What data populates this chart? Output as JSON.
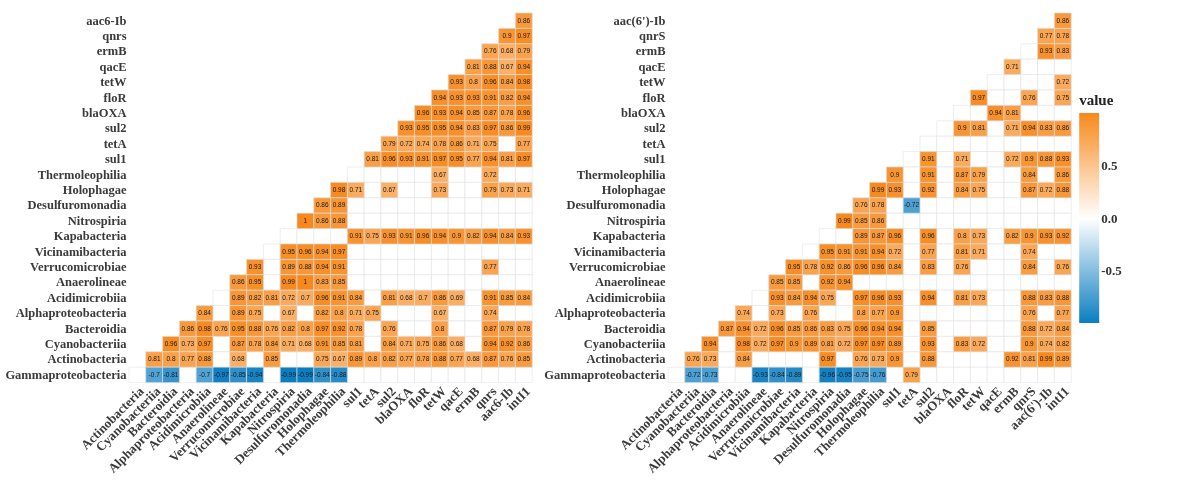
{
  "chart_data": [
    {
      "type": "heatmap",
      "data_labels": true,
      "categories": [
        "Actinobacteria",
        "Cyanobacteriia",
        "Bacteroidia",
        "Alphaproteobacteria",
        "Acidimicrobiia",
        "Anaerolineae",
        "Verrucomicrobiae",
        "Vicinamibacteria",
        "Kapabacteria",
        "Nitrospiria",
        "Desulfuromonadia",
        "Holophagae",
        "Thermoleophilia",
        "sul1",
        "tetA",
        "sul2",
        "blaOXA",
        "floR",
        "tetW",
        "qacE",
        "ermB",
        "qnrs",
        "aac6-Ib",
        "intI1"
      ],
      "y_categories": [
        "aac6-Ib",
        "qnrs",
        "ermB",
        "qacE",
        "tetW",
        "floR",
        "blaOXA",
        "sul2",
        "tetA",
        "sul1",
        "Thermoleophilia",
        "Holophagae",
        "Desulfuromonadia",
        "Nitrospiria",
        "Kapabacteria",
        "Vicinamibacteria",
        "Verrucomicrobiae",
        "Anaerolineae",
        "Acidimicrobiia",
        "Alphaproteobacteria",
        "Bacteroidia",
        "Cyanobacteriia",
        "Actinobacteria",
        "Gammaproteobacteria"
      ],
      "cells": [
        [
          null,
          null,
          null,
          null,
          null,
          null,
          null,
          null,
          null,
          null,
          null,
          null,
          null,
          null,
          null,
          null,
          null,
          null,
          null,
          null,
          null,
          null,
          null,
          0.86
        ],
        [
          null,
          null,
          null,
          null,
          null,
          null,
          null,
          null,
          null,
          null,
          null,
          null,
          null,
          null,
          null,
          null,
          null,
          null,
          null,
          null,
          null,
          null,
          0.9,
          0.97
        ],
        [
          null,
          null,
          null,
          null,
          null,
          null,
          null,
          null,
          null,
          null,
          null,
          null,
          null,
          null,
          null,
          null,
          null,
          null,
          null,
          null,
          null,
          0.76,
          0.68,
          0.79
        ],
        [
          null,
          null,
          null,
          null,
          null,
          null,
          null,
          null,
          null,
          null,
          null,
          null,
          null,
          null,
          null,
          null,
          null,
          null,
          null,
          null,
          0.81,
          0.88,
          0.67,
          0.94
        ],
        [
          null,
          null,
          null,
          null,
          null,
          null,
          null,
          null,
          null,
          null,
          null,
          null,
          null,
          null,
          null,
          null,
          null,
          null,
          null,
          0.93,
          0.8,
          0.96,
          0.84,
          0.98
        ],
        [
          null,
          null,
          null,
          null,
          null,
          null,
          null,
          null,
          null,
          null,
          null,
          null,
          null,
          null,
          null,
          null,
          null,
          null,
          0.94,
          0.93,
          0.93,
          0.91,
          0.82,
          0.94
        ],
        [
          null,
          null,
          null,
          null,
          null,
          null,
          null,
          null,
          null,
          null,
          null,
          null,
          null,
          null,
          null,
          null,
          null,
          0.96,
          0.93,
          0.94,
          0.85,
          0.87,
          0.78,
          0.96
        ],
        [
          null,
          null,
          null,
          null,
          null,
          null,
          null,
          null,
          null,
          null,
          null,
          null,
          null,
          null,
          null,
          null,
          0.93,
          0.95,
          0.95,
          0.94,
          0.83,
          0.97,
          0.86,
          0.99
        ],
        [
          null,
          null,
          null,
          null,
          null,
          null,
          null,
          null,
          null,
          null,
          null,
          null,
          null,
          null,
          null,
          0.79,
          0.72,
          0.74,
          0.78,
          0.86,
          0.71,
          0.75,
          null,
          0.77
        ],
        [
          null,
          null,
          null,
          null,
          null,
          null,
          null,
          null,
          null,
          null,
          null,
          null,
          null,
          null,
          0.81,
          0.96,
          0.93,
          0.91,
          0.97,
          0.95,
          0.77,
          0.94,
          0.81,
          0.97
        ],
        [
          null,
          null,
          null,
          null,
          null,
          null,
          null,
          null,
          null,
          null,
          null,
          null,
          null,
          null,
          null,
          null,
          null,
          null,
          0.67,
          null,
          null,
          0.72,
          null,
          null
        ],
        [
          null,
          null,
          null,
          null,
          null,
          null,
          null,
          null,
          null,
          null,
          null,
          null,
          0.98,
          0.71,
          null,
          0.67,
          null,
          null,
          0.73,
          null,
          null,
          0.79,
          0.73,
          0.71
        ],
        [
          null,
          null,
          null,
          null,
          null,
          null,
          null,
          null,
          null,
          null,
          null,
          0.86,
          0.89,
          null,
          null,
          null,
          null,
          null,
          null,
          null,
          null,
          null,
          null,
          null
        ],
        [
          null,
          null,
          null,
          null,
          null,
          null,
          null,
          null,
          null,
          null,
          1,
          0.86,
          0.88,
          null,
          null,
          null,
          null,
          null,
          null,
          null,
          null,
          null,
          null,
          null
        ],
        [
          null,
          null,
          null,
          null,
          null,
          null,
          null,
          null,
          null,
          null,
          null,
          null,
          null,
          0.91,
          0.75,
          0.93,
          0.91,
          0.96,
          0.94,
          0.9,
          0.82,
          0.94,
          0.84,
          0.93
        ],
        [
          null,
          null,
          null,
          null,
          null,
          null,
          null,
          null,
          null,
          0.95,
          0.96,
          0.94,
          0.97,
          null,
          null,
          null,
          null,
          null,
          null,
          null,
          null,
          null,
          null,
          null
        ],
        [
          null,
          null,
          null,
          null,
          null,
          null,
          null,
          0.93,
          null,
          0.89,
          0.88,
          0.94,
          0.91,
          null,
          null,
          null,
          null,
          null,
          null,
          null,
          null,
          0.77,
          null,
          null
        ],
        [
          null,
          null,
          null,
          null,
          null,
          null,
          0.86,
          0.95,
          null,
          0.99,
          1,
          0.83,
          0.85,
          null,
          null,
          null,
          null,
          null,
          null,
          null,
          null,
          null,
          null,
          null
        ],
        [
          null,
          null,
          null,
          null,
          null,
          null,
          0.89,
          0.82,
          0.81,
          0.72,
          0.7,
          0.96,
          0.91,
          0.84,
          null,
          0.81,
          0.68,
          0.7,
          0.86,
          0.69,
          null,
          0.91,
          0.85,
          0.84
        ],
        [
          null,
          null,
          null,
          null,
          0.84,
          null,
          0.89,
          0.75,
          null,
          0.67,
          null,
          0.82,
          0.8,
          0.71,
          0.75,
          null,
          null,
          null,
          0.67,
          null,
          null,
          0.74,
          null,
          null
        ],
        [
          null,
          null,
          null,
          0.86,
          0.98,
          0.76,
          0.95,
          0.88,
          0.76,
          0.82,
          0.8,
          0.97,
          0.92,
          0.78,
          null,
          0.76,
          null,
          null,
          0.8,
          null,
          null,
          0.87,
          0.79,
          0.78
        ],
        [
          null,
          null,
          0.96,
          0.73,
          0.97,
          null,
          0.87,
          0.78,
          0.84,
          0.71,
          0.68,
          0.91,
          0.85,
          0.81,
          null,
          0.84,
          0.71,
          0.75,
          0.86,
          0.68,
          null,
          0.94,
          0.92,
          0.86
        ],
        [
          null,
          0.81,
          0.8,
          0.77,
          0.88,
          null,
          0.68,
          null,
          0.85,
          null,
          null,
          0.75,
          0.67,
          0.89,
          0.8,
          0.82,
          0.77,
          0.78,
          0.88,
          0.77,
          0.68,
          0.87,
          0.76,
          0.85
        ],
        [
          null,
          -0.7,
          -0.81,
          null,
          -0.7,
          -0.97,
          -0.85,
          -0.94,
          null,
          -0.99,
          -0.99,
          -0.84,
          -0.88,
          null,
          null,
          null,
          null,
          null,
          null,
          null,
          null,
          null,
          null,
          null
        ]
      ]
    },
    {
      "type": "heatmap",
      "data_labels": true,
      "clim": [
        -0.99,
        1
      ],
      "cticks": [
        -0.5,
        {
          "value": 0,
          "label": "0.0"
        },
        0.5
      ],
      "clabel": "value",
      "categories": [
        "Actinobacteria",
        "Cyanobacteriia",
        "Bacteroidia",
        "Alphaproteobacteria",
        "Acidimicrobiia",
        "Anaerolineae",
        "Verrucomicrobiae",
        "Vicinamibacteria",
        "Kapabacteria",
        "Nitrospiria",
        "Desulfuromonadia",
        "Holophagae",
        "Thermoleophilia",
        "sul1",
        "tetA",
        "sul2",
        "blaOXA",
        "floR",
        "tetW",
        "qacE",
        "ermB",
        "qnrS",
        "aac(6')-Ib",
        "intI1"
      ],
      "y_categories": [
        "aac(6')-Ib",
        "qnrS",
        "ermB",
        "qacE",
        "tetW",
        "floR",
        "blaOXA",
        "sul2",
        "tetA",
        "sul1",
        "Thermoleophilia",
        "Holophagae",
        "Desulfuromonadia",
        "Nitrospiria",
        "Kapabacteria",
        "Vicinamibacteria",
        "Verrucomicrobiae",
        "Anaerolineae",
        "Acidimicrobiia",
        "Alphaproteobacteria",
        "Bacteroidia",
        "Cyanobacteriia",
        "Actinobacteria",
        "Gammaproteobacteria"
      ],
      "cells": [
        [
          null,
          null,
          null,
          null,
          null,
          null,
          null,
          null,
          null,
          null,
          null,
          null,
          null,
          null,
          null,
          null,
          null,
          null,
          null,
          null,
          null,
          null,
          null,
          0.86
        ],
        [
          null,
          null,
          null,
          null,
          null,
          null,
          null,
          null,
          null,
          null,
          null,
          null,
          null,
          null,
          null,
          null,
          null,
          null,
          null,
          null,
          null,
          null,
          0.77,
          0.78
        ],
        [
          null,
          null,
          null,
          null,
          null,
          null,
          null,
          null,
          null,
          null,
          null,
          null,
          null,
          null,
          null,
          null,
          null,
          null,
          null,
          null,
          null,
          null,
          0.93,
          0.83
        ],
        [
          null,
          null,
          null,
          null,
          null,
          null,
          null,
          null,
          null,
          null,
          null,
          null,
          null,
          null,
          null,
          null,
          null,
          null,
          null,
          null,
          0.71,
          null,
          null,
          null
        ],
        [
          null,
          null,
          null,
          null,
          null,
          null,
          null,
          null,
          null,
          null,
          null,
          null,
          null,
          null,
          null,
          null,
          null,
          null,
          null,
          null,
          null,
          null,
          null,
          0.72
        ],
        [
          null,
          null,
          null,
          null,
          null,
          null,
          null,
          null,
          null,
          null,
          null,
          null,
          null,
          null,
          null,
          null,
          null,
          null,
          0.97,
          null,
          null,
          0.76,
          null,
          0.75
        ],
        [
          null,
          null,
          null,
          null,
          null,
          null,
          null,
          null,
          null,
          null,
          null,
          null,
          null,
          null,
          null,
          null,
          null,
          null,
          null,
          0.94,
          0.81,
          null,
          null,
          null
        ],
        [
          null,
          null,
          null,
          null,
          null,
          null,
          null,
          null,
          null,
          null,
          null,
          null,
          null,
          null,
          null,
          null,
          null,
          0.9,
          0.81,
          null,
          0.71,
          0.94,
          0.83,
          0.86
        ],
        [
          null,
          null,
          null,
          null,
          null,
          null,
          null,
          null,
          null,
          null,
          null,
          null,
          null,
          null,
          null,
          null,
          null,
          null,
          null,
          null,
          null,
          null,
          null,
          null
        ],
        [
          null,
          null,
          null,
          null,
          null,
          null,
          null,
          null,
          null,
          null,
          null,
          null,
          null,
          null,
          null,
          0.91,
          null,
          0.71,
          null,
          null,
          0.72,
          0.9,
          0.88,
          0.93
        ],
        [
          null,
          null,
          null,
          null,
          null,
          null,
          null,
          null,
          null,
          null,
          null,
          null,
          null,
          0.9,
          null,
          0.91,
          null,
          0.87,
          0.79,
          null,
          null,
          0.84,
          null,
          0.86
        ],
        [
          null,
          null,
          null,
          null,
          null,
          null,
          null,
          null,
          null,
          null,
          null,
          null,
          0.99,
          0.93,
          null,
          0.92,
          null,
          0.84,
          0.75,
          null,
          null,
          0.87,
          0.72,
          0.88
        ],
        [
          null,
          null,
          null,
          null,
          null,
          null,
          null,
          null,
          null,
          null,
          null,
          0.76,
          0.78,
          null,
          -0.72,
          null,
          null,
          null,
          null,
          null,
          null,
          null,
          null,
          null
        ],
        [
          null,
          null,
          null,
          null,
          null,
          null,
          null,
          null,
          null,
          null,
          0.99,
          0.85,
          0.86,
          null,
          null,
          null,
          null,
          null,
          null,
          null,
          null,
          null,
          null,
          null
        ],
        [
          null,
          null,
          null,
          null,
          null,
          null,
          null,
          null,
          null,
          null,
          null,
          0.89,
          0.87,
          0.96,
          null,
          0.96,
          null,
          0.8,
          0.73,
          null,
          0.82,
          0.9,
          0.93,
          0.92
        ],
        [
          null,
          null,
          null,
          null,
          null,
          null,
          null,
          null,
          null,
          0.95,
          0.91,
          0.91,
          0.94,
          0.72,
          null,
          0.77,
          null,
          0.81,
          0.71,
          null,
          null,
          0.74,
          null,
          null
        ],
        [
          null,
          null,
          null,
          null,
          null,
          null,
          null,
          0.95,
          0.78,
          0.92,
          0.86,
          0.96,
          0.96,
          0.84,
          null,
          0.83,
          null,
          0.76,
          null,
          null,
          null,
          0.84,
          null,
          0.76
        ],
        [
          null,
          null,
          null,
          null,
          null,
          null,
          0.85,
          0.85,
          null,
          0.92,
          0.94,
          null,
          null,
          null,
          null,
          null,
          null,
          null,
          null,
          null,
          null,
          null,
          null,
          null
        ],
        [
          null,
          null,
          null,
          null,
          null,
          null,
          0.93,
          0.84,
          0.94,
          0.75,
          null,
          0.97,
          0.96,
          0.93,
          null,
          0.94,
          null,
          0.81,
          0.73,
          null,
          null,
          0.88,
          0.83,
          0.88
        ],
        [
          null,
          null,
          null,
          null,
          0.74,
          null,
          0.73,
          null,
          0.76,
          null,
          null,
          0.8,
          0.77,
          0.9,
          null,
          null,
          null,
          null,
          null,
          null,
          null,
          0.76,
          null,
          0.77
        ],
        [
          null,
          null,
          null,
          0.87,
          0.94,
          0.72,
          0.96,
          0.85,
          0.86,
          0.83,
          0.75,
          0.96,
          0.94,
          0.94,
          null,
          0.85,
          null,
          null,
          null,
          null,
          null,
          0.88,
          0.72,
          0.84
        ],
        [
          null,
          null,
          0.94,
          null,
          0.98,
          0.72,
          0.97,
          0.9,
          0.89,
          0.81,
          0.72,
          0.97,
          0.97,
          0.89,
          null,
          0.93,
          null,
          0.83,
          0.72,
          null,
          null,
          0.9,
          0.74,
          0.82
        ],
        [
          null,
          0.76,
          0.73,
          null,
          0.84,
          null,
          null,
          null,
          null,
          0.97,
          null,
          0.76,
          0.73,
          0.9,
          null,
          0.88,
          null,
          null,
          null,
          null,
          0.92,
          0.81,
          0.99,
          0.89
        ],
        [
          null,
          -0.72,
          -0.73,
          null,
          null,
          -0.93,
          -0.84,
          -0.89,
          null,
          -0.96,
          -0.95,
          -0.75,
          -0.76,
          null,
          0.79,
          null,
          null,
          null,
          null,
          null,
          null,
          null,
          null,
          null
        ]
      ]
    }
  ]
}
